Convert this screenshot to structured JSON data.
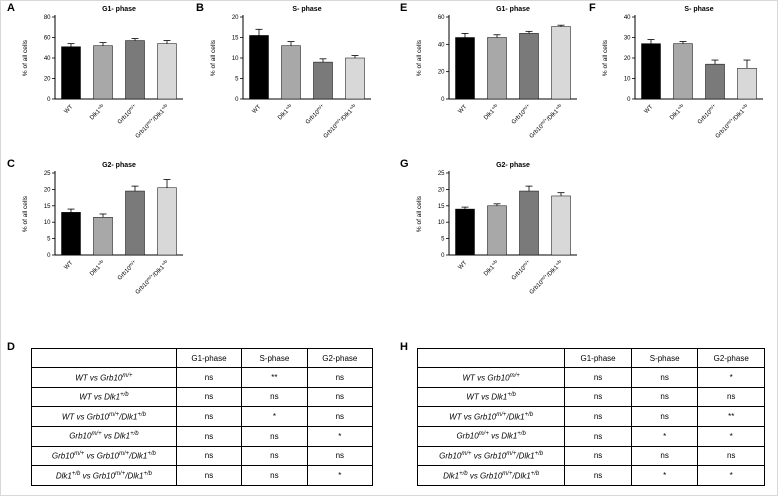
{
  "panels": {
    "a": "A",
    "b": "B",
    "c": "C",
    "d": "D",
    "e": "E",
    "f": "F",
    "g": "G",
    "h": "H"
  },
  "bar_colors": [
    "#000000",
    "#a8a8a8",
    "#7a7a7a",
    "#d8d8d8"
  ],
  "genotypes": [
    "WT",
    "Dlk1^{+/b}",
    "Grb10^{m/+}",
    "Grb10^{m/+}/Dlk1^{+/b}"
  ],
  "chart_data": [
    {
      "panel": "A",
      "type": "bar",
      "title": "G1- phase",
      "ylabel": "% of all cells",
      "ylim": [
        0,
        80
      ],
      "yticks": [
        0,
        20,
        40,
        60,
        80
      ],
      "categories": [
        "WT",
        "Dlk1^{+/b}",
        "Grb10^{m/+}",
        "Grb10^{m/+}/Dlk1^{+/b}"
      ],
      "values": [
        51,
        52,
        57,
        54
      ],
      "errors": [
        3,
        3,
        2,
        3
      ]
    },
    {
      "panel": "B",
      "type": "bar",
      "title": "S- phase",
      "ylabel": "% of all cells",
      "ylim": [
        0,
        20
      ],
      "yticks": [
        0,
        5,
        10,
        15,
        20
      ],
      "categories": [
        "WT",
        "Dlk1^{+/b}",
        "Grb10^{m/+}",
        "Grb10^{m/+}/Dlk1^{+/b}"
      ],
      "values": [
        15.5,
        13,
        9,
        10
      ],
      "errors": [
        1.5,
        1,
        0.8,
        0.6
      ]
    },
    {
      "panel": "C",
      "type": "bar",
      "title": "G2- phase",
      "ylabel": "% of all cells",
      "ylim": [
        0,
        25
      ],
      "yticks": [
        0,
        5,
        10,
        15,
        20,
        25
      ],
      "categories": [
        "WT",
        "Dlk1^{+/b}",
        "Grb10^{m/+}",
        "Grb10^{m/+}/Dlk1^{+/b}"
      ],
      "values": [
        13,
        11.5,
        19.5,
        20.5
      ],
      "errors": [
        1,
        1,
        1.5,
        2.5
      ]
    },
    {
      "panel": "E",
      "type": "bar",
      "title": "G1- phase",
      "ylabel": "% of all cells",
      "ylim": [
        0,
        60
      ],
      "yticks": [
        0,
        20,
        40,
        60
      ],
      "categories": [
        "WT",
        "Dlk1^{+/b}",
        "Grb10^{m/+}",
        "Grb10^{m/+}/Dlk1^{+/b}"
      ],
      "values": [
        45,
        45,
        48,
        53
      ],
      "errors": [
        3,
        2,
        1.5,
        1
      ]
    },
    {
      "panel": "F",
      "type": "bar",
      "title": "S- phase",
      "ylabel": "% of all cells",
      "ylim": [
        0,
        40
      ],
      "yticks": [
        0,
        10,
        20,
        30,
        40
      ],
      "categories": [
        "WT",
        "Dlk1^{+/b}",
        "Grb10^{m/+}",
        "Grb10^{m/+}/Dlk1^{+/b}"
      ],
      "values": [
        27,
        27,
        17,
        15
      ],
      "errors": [
        2,
        1,
        2,
        4
      ]
    },
    {
      "panel": "G",
      "type": "bar",
      "title": "G2- phase",
      "ylabel": "% of all cells",
      "ylim": [
        0,
        25
      ],
      "yticks": [
        0,
        5,
        10,
        15,
        20,
        25
      ],
      "categories": [
        "WT",
        "Dlk1^{+/b}",
        "Grb10^{m/+}",
        "Grb10^{m/+}/Dlk1^{+/b}"
      ],
      "values": [
        14,
        15,
        19.5,
        18
      ],
      "errors": [
        0.6,
        0.6,
        1.5,
        1
      ]
    }
  ],
  "tables": [
    {
      "panel": "D",
      "headers": [
        "",
        "G1-phase",
        "S-phase",
        "G2-phase"
      ],
      "rows": [
        {
          "label": "WT vs Grb10^{m/+}",
          "cells": [
            "ns",
            "**",
            "ns"
          ]
        },
        {
          "label": "WT vs Dlk1^{+/b}",
          "cells": [
            "ns",
            "ns",
            "ns"
          ]
        },
        {
          "label": "WT vs Grb10^{m/+}/Dlk1^{+/b}",
          "cells": [
            "ns",
            "*",
            "ns"
          ]
        },
        {
          "label": "Grb10^{m/+} vs Dlk1^{+/b}",
          "cells": [
            "ns",
            "ns",
            "*"
          ]
        },
        {
          "label": "Grb10^{m/+} vs Grb10^{m/+}/Dlk1^{+/b}",
          "cells": [
            "ns",
            "ns",
            "ns"
          ]
        },
        {
          "label": "Dlk1^{+/b} vs Grb10^{m/+}/Dlk1^{+/b}",
          "cells": [
            "ns",
            "ns",
            "*"
          ]
        }
      ]
    },
    {
      "panel": "H",
      "headers": [
        "",
        "G1-phase",
        "S-phase",
        "G2-phase"
      ],
      "rows": [
        {
          "label": "WT vs Grb10^{m/+}",
          "cells": [
            "ns",
            "ns",
            "*"
          ]
        },
        {
          "label": "WT vs Dlk1^{+/b}",
          "cells": [
            "ns",
            "ns",
            "ns"
          ]
        },
        {
          "label": "WT vs Grb10^{m/+}/Dlk1^{+/b}",
          "cells": [
            "ns",
            "ns",
            "**"
          ]
        },
        {
          "label": "Grb10^{m/+} vs Dlk1^{+/b}",
          "cells": [
            "ns",
            "*",
            "*"
          ]
        },
        {
          "label": "Grb10^{m/+} vs Grb10^{m/+}/Dlk1^{+/b}",
          "cells": [
            "ns",
            "ns",
            "ns"
          ]
        },
        {
          "label": "Dlk1^{+/b} vs Grb10^{m/+}/Dlk1^{+/b}",
          "cells": [
            "ns",
            "*",
            "*"
          ]
        }
      ]
    }
  ]
}
